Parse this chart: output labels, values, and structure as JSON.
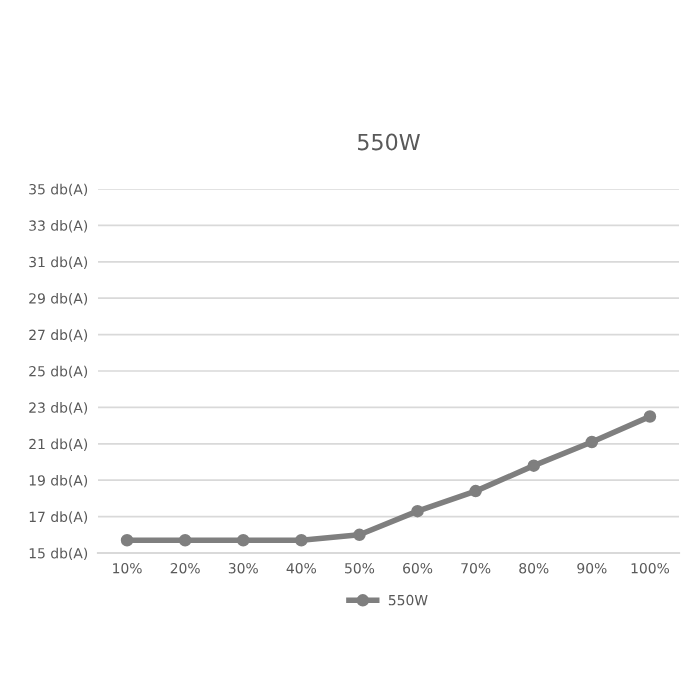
{
  "chart_data": {
    "type": "line",
    "title": "550W",
    "categories": [
      "10%",
      "20%",
      "30%",
      "40%",
      "50%",
      "60%",
      "70%",
      "80%",
      "90%",
      "100%"
    ],
    "series": [
      {
        "name": "550W",
        "color": "#7f7f7f",
        "values": [
          15.7,
          15.7,
          15.7,
          15.7,
          16.0,
          17.3,
          18.4,
          19.8,
          21.1,
          22.5
        ]
      }
    ],
    "ylim": [
      15,
      35
    ],
    "yticks": [
      {
        "value": 15,
        "label": "15 db(A)"
      },
      {
        "value": 17,
        "label": "17 db(A)"
      },
      {
        "value": 19,
        "label": "19 db(A)"
      },
      {
        "value": 21,
        "label": "21 db(A)"
      },
      {
        "value": 23,
        "label": "23 db(A)"
      },
      {
        "value": 25,
        "label": "25 db(A)"
      },
      {
        "value": 27,
        "label": "27 db(A)"
      },
      {
        "value": 29,
        "label": "29 db(A)"
      },
      {
        "value": 31,
        "label": "31 db(A)"
      },
      {
        "value": 33,
        "label": "33 db(A)"
      },
      {
        "value": 35,
        "label": "35 db(A)"
      }
    ],
    "grid": "y",
    "legend": "bottom",
    "marker": "circle",
    "line_style": "solid"
  }
}
